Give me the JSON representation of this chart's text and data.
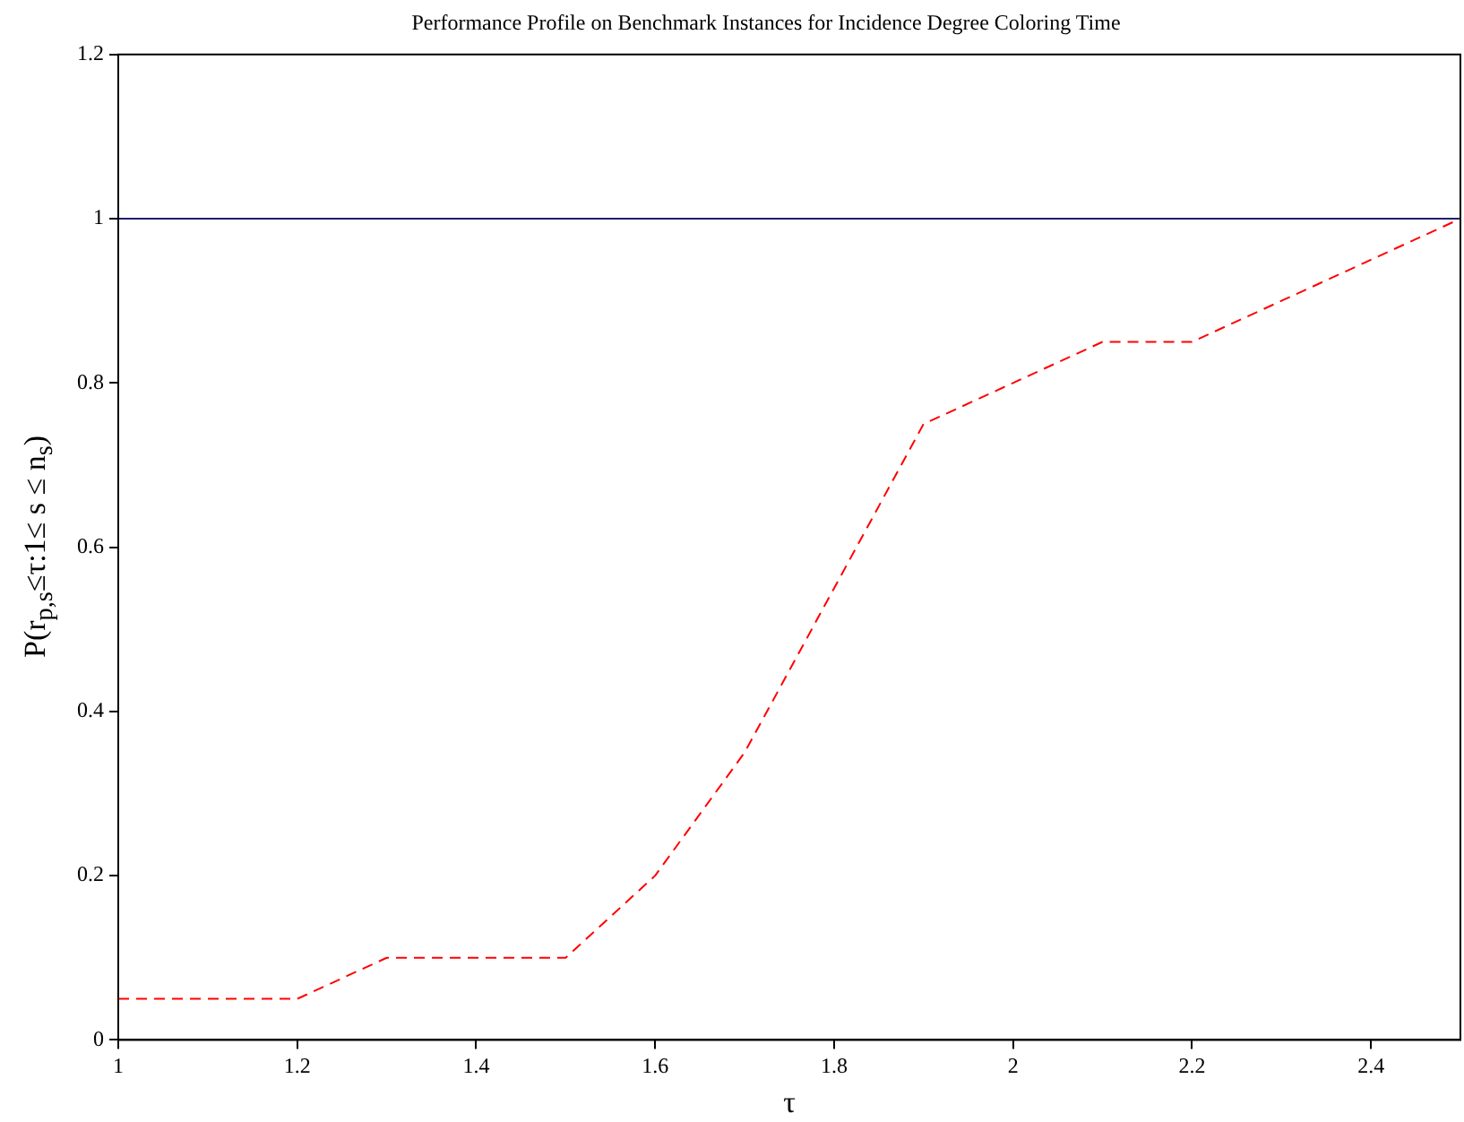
{
  "chart_data": {
    "type": "line",
    "title": "Performance Profile on Benchmark Instances for Incidence Degree Coloring Time",
    "xlabel": "τ",
    "ylabel": "P(r$_{p,s}$≤τ:1≤ s ≤ n$_{s}$)",
    "x": [
      1,
      1.1,
      1.2,
      1.3,
      1.4,
      1.5,
      1.6,
      1.7,
      1.8,
      1.9,
      2,
      2.1,
      2.2,
      2.3,
      2.4,
      2.5
    ],
    "series": [
      {
        "color": "#ff0000",
        "line_style": "dashed",
        "values": [
          0.05,
          0.05,
          0.05,
          0.1,
          0.1,
          0.1,
          0.2,
          0.35,
          0.55,
          0.75,
          0.8,
          0.85,
          0.85,
          0.9,
          0.95,
          1
        ]
      },
      {
        "color": "#1f1f6f",
        "line_style": "solid",
        "values": [
          1,
          1,
          1,
          1,
          1,
          1,
          1,
          1,
          1,
          1,
          1,
          1,
          1,
          1,
          1,
          1
        ]
      }
    ],
    "xlim": [
      1,
      2.5
    ],
    "xticks": [
      1,
      1.2,
      1.4,
      1.6,
      1.8,
      2,
      2.2,
      2.4
    ],
    "ylim": [
      0,
      1.2
    ],
    "yticks": [
      0,
      0.2,
      0.4,
      0.6,
      0.8,
      1,
      1.2
    ],
    "grid": false,
    "legend": false,
    "marker": "none"
  }
}
